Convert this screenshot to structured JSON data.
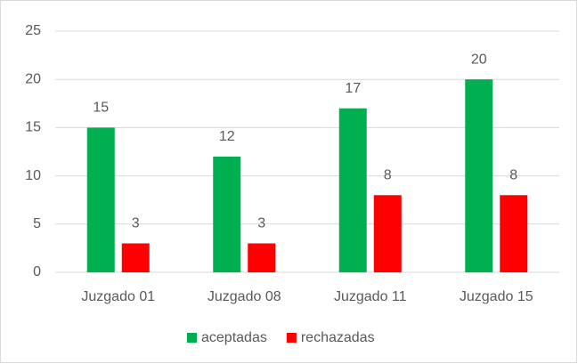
{
  "chart_data": {
    "type": "bar",
    "categories": [
      "Juzgado 01",
      "Juzgado 08",
      "Juzgado 11",
      "Juzgado 15"
    ],
    "series": [
      {
        "name": "aceptadas",
        "color": "#00b050",
        "values": [
          15,
          12,
          17,
          20
        ]
      },
      {
        "name": "rechazadas",
        "color": "#ff0000",
        "values": [
          3,
          3,
          8,
          8
        ]
      }
    ],
    "ylim": [
      0,
      25
    ],
    "yticks": [
      0,
      5,
      10,
      15,
      20,
      25
    ],
    "grid": true,
    "legend": "bottom"
  }
}
